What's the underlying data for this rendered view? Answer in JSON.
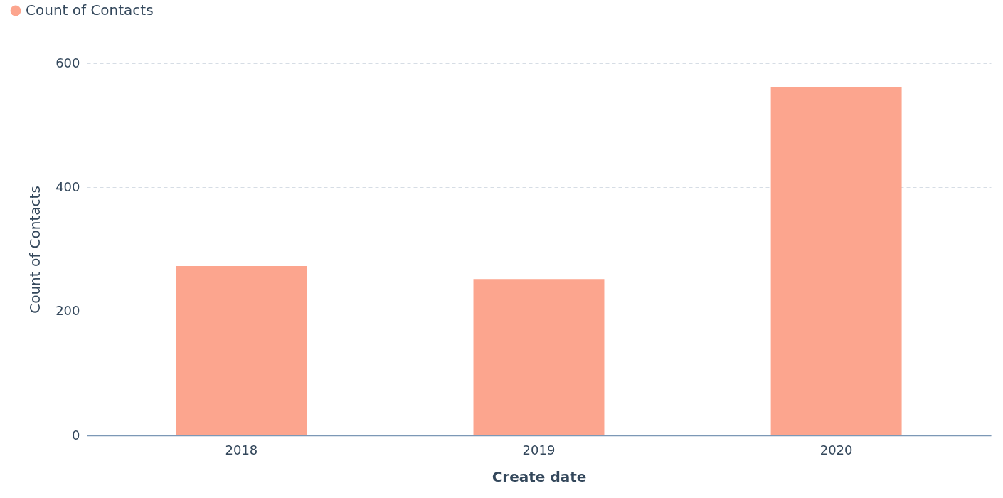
{
  "chart_data": {
    "type": "bar",
    "xlabel": "Create date",
    "ylabel": "Count of Contacts",
    "categories": [
      "2018",
      "2019",
      "2020"
    ],
    "series": [
      {
        "name": "Count of Contacts",
        "color": "#fca58e",
        "values": [
          273,
          252,
          562
        ]
      }
    ],
    "ylim": [
      0,
      600
    ],
    "yticks": [
      0,
      200,
      400,
      600
    ],
    "grid": "y",
    "legend": "top left"
  }
}
